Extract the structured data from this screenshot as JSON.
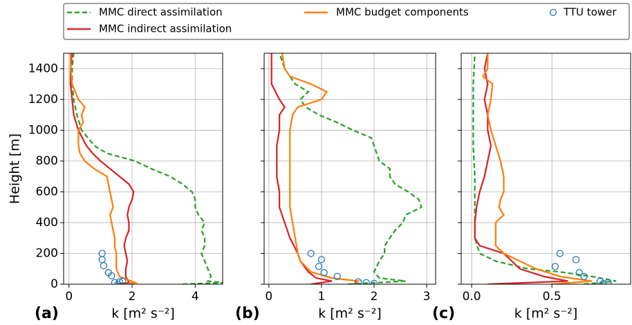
{
  "chart_data": [
    {
      "type": "line",
      "panel_label": "(a)",
      "xlabel": "k [m² s⁻²]",
      "ylabel": "Height [m]",
      "xlim": [
        -0.17,
        4.87
      ],
      "xticks": [
        0,
        2,
        4
      ],
      "ylim": [
        0,
        1500
      ],
      "yticks": [
        0,
        200,
        400,
        600,
        800,
        1000,
        1200,
        1400
      ],
      "ytick_labels": true,
      "grid": true,
      "series": [
        {
          "name": "MMC direct assimilation",
          "color": "#2ca02c",
          "linestyle": "dashed",
          "y": [
            0,
            10,
            20,
            50,
            100,
            150,
            200,
            250,
            300,
            350,
            400,
            450,
            500,
            550,
            600,
            650,
            700,
            750,
            800,
            850,
            900,
            1000,
            1100,
            1200,
            1300,
            1400,
            1500
          ],
          "x": [
            3.6,
            4.9,
            4.4,
            4.5,
            4.4,
            4.3,
            4.2,
            4.3,
            4.3,
            4.2,
            4.3,
            4.1,
            4.0,
            4.0,
            3.9,
            3.6,
            3.2,
            2.6,
            2.1,
            1.2,
            0.8,
            0.4,
            0.25,
            0.15,
            0.1,
            0.1,
            0.15
          ]
        },
        {
          "name": "MMC indirect assimilation",
          "color": "#d62728",
          "linestyle": "solid",
          "y": [
            0,
            10,
            50,
            100,
            150,
            200,
            250,
            300,
            350,
            400,
            450,
            500,
            550,
            600,
            650,
            700,
            750,
            800,
            850,
            900,
            1000,
            1100,
            1200,
            1300,
            1400,
            1500
          ],
          "x": [
            1.5,
            1.9,
            1.8,
            1.8,
            1.85,
            1.8,
            1.75,
            1.8,
            1.9,
            1.9,
            1.85,
            1.9,
            2.0,
            2.05,
            1.9,
            1.6,
            1.3,
            1.0,
            0.75,
            0.55,
            0.3,
            0.15,
            0.1,
            0.05,
            0.05,
            0.1
          ]
        },
        {
          "name": "MMC budget components",
          "color": "#ff7f0e",
          "linestyle": "solid",
          "y": [
            0,
            10,
            50,
            100,
            200,
            250,
            300,
            350,
            400,
            450,
            500,
            550,
            600,
            650,
            700,
            750,
            800,
            850,
            900,
            1000,
            1050,
            1100,
            1150,
            1200,
            1300,
            1400,
            1500
          ],
          "x": [
            1.8,
            2.1,
            1.6,
            1.5,
            1.5,
            1.45,
            1.45,
            1.4,
            1.35,
            1.3,
            1.4,
            1.35,
            1.3,
            1.25,
            1.2,
            0.8,
            0.5,
            0.35,
            0.3,
            0.3,
            0.45,
            0.4,
            0.5,
            0.3,
            0.1,
            0.05,
            0.05
          ]
        },
        {
          "name": "TTU tower",
          "color": "#1f77b4",
          "linestyle": "none",
          "marker": "circle",
          "y": [
            200,
            160,
            120,
            75,
            55,
            20,
            15,
            10,
            0
          ],
          "x": [
            1.05,
            1.05,
            1.1,
            1.25,
            1.35,
            1.7,
            1.6,
            1.45,
            1.55
          ]
        }
      ]
    },
    {
      "type": "line",
      "panel_label": "(b)",
      "xlabel": "k [m² s⁻²]",
      "xlim": [
        -0.09,
        3.17
      ],
      "xticks": [
        0,
        1,
        2,
        3
      ],
      "ylim": [
        0,
        1500
      ],
      "yticks": [
        0,
        200,
        400,
        600,
        800,
        1000,
        1200,
        1400
      ],
      "ytick_labels": false,
      "grid": true,
      "series": [
        {
          "color": "#2ca02c",
          "linestyle": "dashed",
          "y": [
            0,
            20,
            40,
            80,
            150,
            200,
            250,
            300,
            350,
            400,
            450,
            500,
            550,
            600,
            650,
            700,
            750,
            800,
            850,
            900,
            950,
            1000,
            1050,
            1100,
            1150,
            1200,
            1250,
            1300,
            1400,
            1500
          ],
          "x": [
            1.5,
            2.6,
            2.1,
            2.0,
            2.1,
            2.2,
            2.2,
            2.3,
            2.4,
            2.55,
            2.6,
            2.9,
            2.85,
            2.65,
            2.4,
            2.3,
            2.3,
            2.1,
            2.05,
            2.0,
            1.95,
            1.6,
            1.3,
            0.95,
            0.7,
            0.6,
            0.75,
            0.5,
            0.3,
            0.2
          ]
        },
        {
          "color": "#d62728",
          "linestyle": "solid",
          "y": [
            0,
            20,
            40,
            80,
            150,
            200,
            300,
            400,
            500,
            600,
            700,
            800,
            900,
            1000,
            1100,
            1150,
            1200,
            1300,
            1400,
            1500
          ],
          "x": [
            0.8,
            1.2,
            0.9,
            0.75,
            0.6,
            0.55,
            0.4,
            0.3,
            0.2,
            0.2,
            0.15,
            0.15,
            0.15,
            0.2,
            0.2,
            0.3,
            0.2,
            0.05,
            0.05,
            0.05
          ]
        },
        {
          "color": "#ff7f0e",
          "linestyle": "solid",
          "y": [
            0,
            20,
            40,
            80,
            150,
            200,
            300,
            400,
            500,
            700,
            900,
            1000,
            1100,
            1150,
            1200,
            1250,
            1300,
            1350,
            1400,
            1500
          ],
          "x": [
            1.6,
            1.7,
            1.2,
            0.8,
            0.6,
            0.55,
            0.5,
            0.45,
            0.4,
            0.4,
            0.4,
            0.4,
            0.45,
            0.55,
            1.0,
            1.1,
            0.8,
            0.4,
            0.3,
            0.25
          ]
        },
        {
          "color": "#1f77b4",
          "linestyle": "none",
          "marker": "circle",
          "y": [
            200,
            160,
            115,
            75,
            50,
            15,
            10,
            5
          ],
          "x": [
            0.8,
            1.0,
            0.95,
            1.05,
            1.3,
            1.7,
            1.85,
            2.0
          ]
        }
      ]
    },
    {
      "type": "line",
      "panel_label": "(c)",
      "xlabel": "k [m² s⁻²]",
      "xlim": [
        -0.065,
        0.99
      ],
      "xticks": [
        {
          "value": 0,
          "label": "0.0"
        },
        0.5
      ],
      "ylim": [
        0,
        1500
      ],
      "yticks": [
        0,
        200,
        400,
        600,
        800,
        1000,
        1200,
        1400
      ],
      "ytick_labels": false,
      "grid": true,
      "series": [
        {
          "color": "#2ca02c",
          "linestyle": "dashed",
          "y": [
            0,
            20,
            50,
            80,
            100,
            150,
            200,
            300,
            500,
            700,
            900,
            1100,
            1300,
            1500
          ],
          "x": [
            0.7,
            0.9,
            0.75,
            0.55,
            0.35,
            0.15,
            0.05,
            0.02,
            0.02,
            0.02,
            0.01,
            0.01,
            0.01,
            0.02
          ]
        },
        {
          "color": "#d62728",
          "linestyle": "solid",
          "y": [
            0,
            20,
            50,
            100,
            150,
            200,
            250,
            300,
            400,
            500,
            600,
            700,
            800,
            900,
            1000,
            1100,
            1200,
            1300,
            1400,
            1500
          ],
          "x": [
            0.1,
            0.6,
            0.45,
            0.3,
            0.25,
            0.2,
            0.05,
            0.02,
            0.02,
            0.03,
            0.05,
            0.08,
            0.1,
            0.12,
            0.1,
            0.1,
            0.08,
            0.1,
            0.08,
            0.1
          ]
        },
        {
          "color": "#ff7f0e",
          "linestyle": "solid",
          "y": [
            0,
            20,
            50,
            100,
            150,
            200,
            250,
            300,
            350,
            400,
            450,
            500,
            550,
            600,
            650,
            700,
            800,
            900,
            1000,
            1100,
            1200,
            1300,
            1350,
            1400,
            1500
          ],
          "x": [
            0.5,
            0.75,
            0.55,
            0.4,
            0.3,
            0.2,
            0.15,
            0.15,
            0.15,
            0.15,
            0.2,
            0.17,
            0.18,
            0.2,
            0.2,
            0.2,
            0.18,
            0.15,
            0.12,
            0.1,
            0.12,
            0.13,
            0.07,
            0.1,
            0.1
          ]
        },
        {
          "color": "#1f77b4",
          "linestyle": "none",
          "marker": "circle",
          "y": [
            200,
            160,
            115,
            75,
            50,
            20,
            10,
            5
          ],
          "x": [
            0.55,
            0.65,
            0.52,
            0.67,
            0.7,
            0.8,
            0.85,
            0.82
          ]
        }
      ]
    }
  ]
}
